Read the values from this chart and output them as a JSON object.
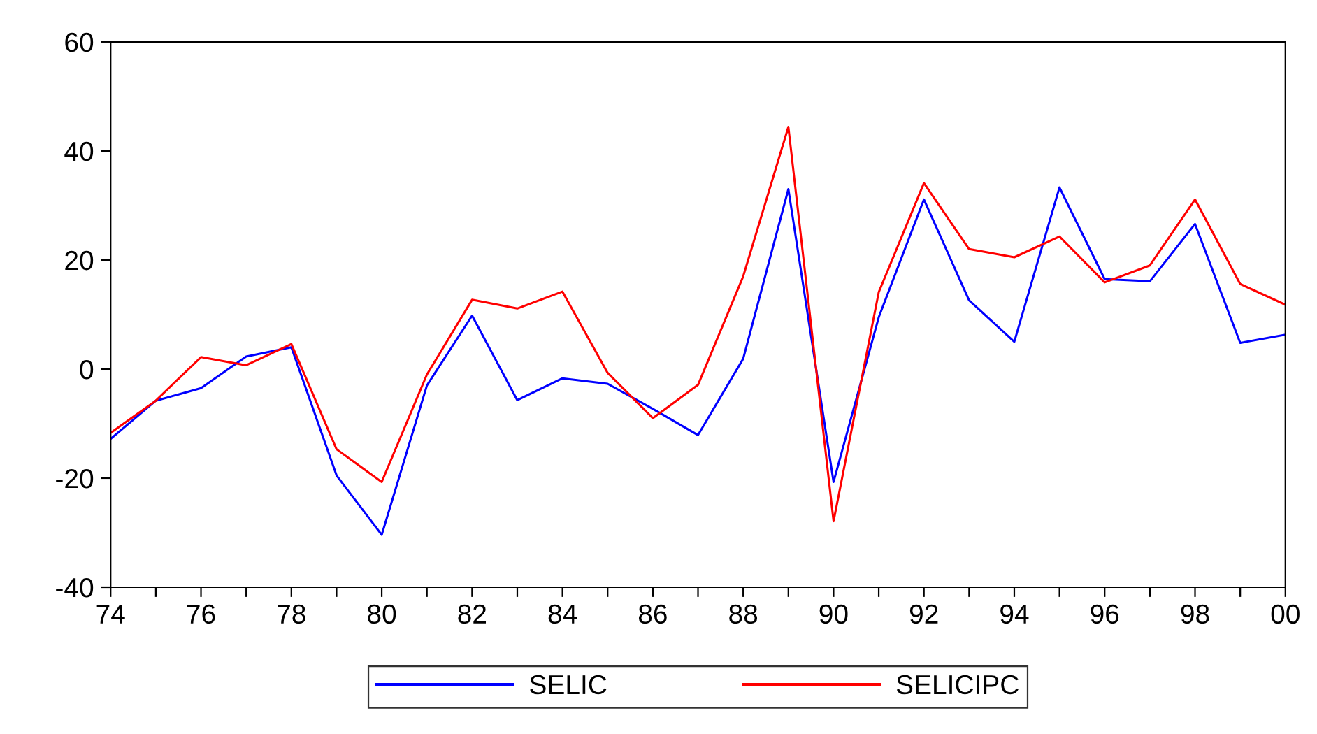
{
  "chart_data": {
    "type": "line",
    "x": [
      1974,
      1975,
      1976,
      1977,
      1978,
      1979,
      1980,
      1981,
      1982,
      1983,
      1984,
      1985,
      1986,
      1987,
      1988,
      1989,
      1990,
      1991,
      1992,
      1993,
      1994,
      1995,
      1996,
      1997,
      1998,
      1999,
      2000
    ],
    "series": [
      {
        "name": "SELIC",
        "color": "#0000ff",
        "values": [
          -12.8,
          -5.8,
          -3.5,
          2.3,
          4.0,
          -19.5,
          -30.4,
          -3.0,
          9.8,
          -5.7,
          -1.7,
          -2.7,
          -7.3,
          -12.1,
          1.9,
          33.0,
          -20.7,
          9.5,
          31.1,
          12.6,
          5.0,
          33.3,
          16.5,
          16.1,
          26.6,
          4.8,
          6.3
        ]
      },
      {
        "name": "SELICIPC",
        "color": "#ff0000",
        "values": [
          -11.7,
          -5.8,
          2.2,
          0.7,
          4.6,
          -14.7,
          -20.7,
          -1.0,
          12.7,
          11.1,
          14.2,
          -0.7,
          -9.0,
          -2.9,
          17.0,
          44.4,
          -27.9,
          14.1,
          34.1,
          22.0,
          20.5,
          24.3,
          15.9,
          19.0,
          31.1,
          15.6,
          11.8
        ]
      }
    ],
    "xlim": [
      1974,
      2000
    ],
    "xticks": [
      {
        "value": 1974,
        "label": "74"
      },
      {
        "value": 1975,
        "label": null
      },
      {
        "value": 1976,
        "label": "76"
      },
      {
        "value": 1977,
        "label": null
      },
      {
        "value": 1978,
        "label": "78"
      },
      {
        "value": 1979,
        "label": null
      },
      {
        "value": 1980,
        "label": "80"
      },
      {
        "value": 1981,
        "label": null
      },
      {
        "value": 1982,
        "label": "82"
      },
      {
        "value": 1983,
        "label": null
      },
      {
        "value": 1984,
        "label": "84"
      },
      {
        "value": 1985,
        "label": null
      },
      {
        "value": 1986,
        "label": "86"
      },
      {
        "value": 1987,
        "label": null
      },
      {
        "value": 1988,
        "label": "88"
      },
      {
        "value": 1989,
        "label": null
      },
      {
        "value": 1990,
        "label": "90"
      },
      {
        "value": 1991,
        "label": null
      },
      {
        "value": 1992,
        "label": "92"
      },
      {
        "value": 1993,
        "label": null
      },
      {
        "value": 1994,
        "label": "94"
      },
      {
        "value": 1995,
        "label": null
      },
      {
        "value": 1996,
        "label": "96"
      },
      {
        "value": 1997,
        "label": null
      },
      {
        "value": 1998,
        "label": "98"
      },
      {
        "value": 1999,
        "label": null
      },
      {
        "value": 2000,
        "label": "00"
      }
    ],
    "ylim": [
      -40,
      60
    ],
    "yticks": [
      -40,
      -20,
      0,
      20,
      40,
      60
    ],
    "grid": false,
    "legend": "bottom",
    "marker": "none",
    "line_style": "solid"
  }
}
